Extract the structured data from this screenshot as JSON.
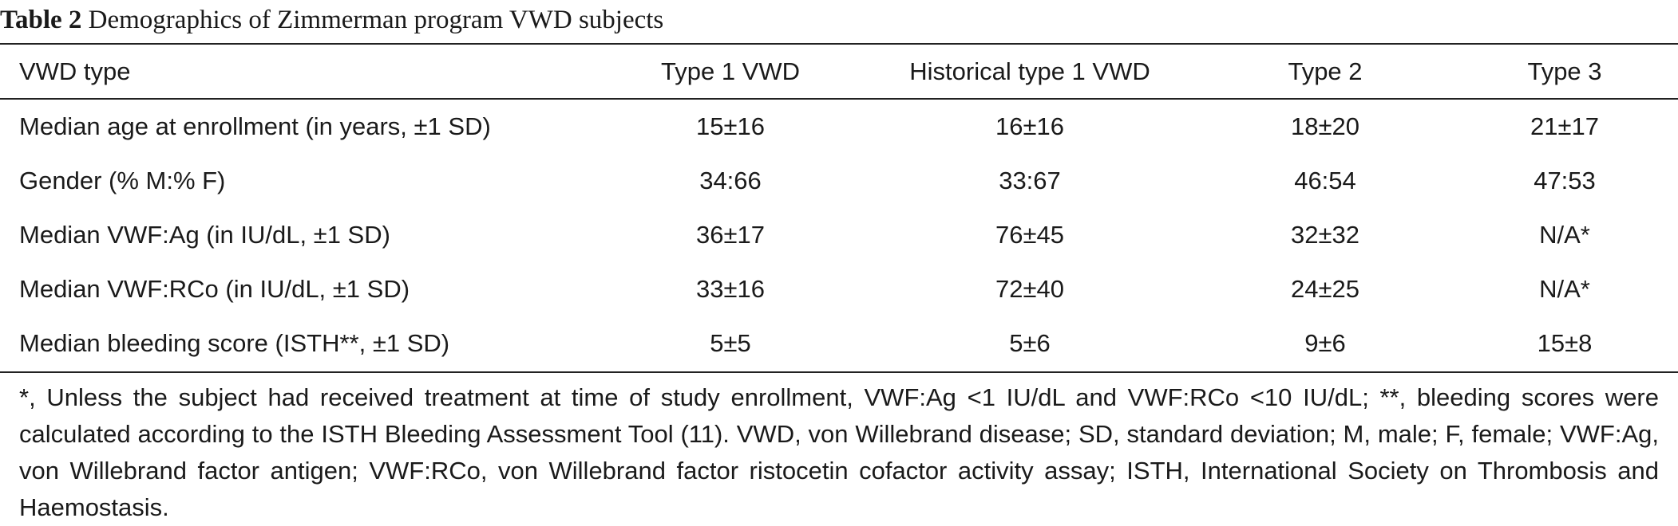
{
  "caption": {
    "label": "Table 2",
    "text": " Demographics of Zimmerman program VWD subjects"
  },
  "table": {
    "headers": [
      "VWD type",
      "Type 1 VWD",
      "Historical type 1 VWD",
      "Type 2",
      "Type 3"
    ],
    "rows": [
      [
        "Median age at enrollment (in years, ±1 SD)",
        "15±16",
        "16±16",
        "18±20",
        "21±17"
      ],
      [
        "Gender (% M:% F)",
        "34:66",
        "33:67",
        "46:54",
        "47:53"
      ],
      [
        "Median VWF:Ag (in IU/dL, ±1 SD)",
        "36±17",
        "76±45",
        "32±32",
        "N/A*"
      ],
      [
        "Median VWF:RCo (in IU/dL, ±1 SD)",
        "33±16",
        "72±40",
        "24±25",
        "N/A*"
      ],
      [
        "Median bleeding score (ISTH**, ±1 SD)",
        "5±5",
        "5±6",
        "9±6",
        "15±8"
      ]
    ]
  },
  "footnote": "*, Unless the subject had received treatment at time of study enrollment, VWF:Ag <1 IU/dL and VWF:RCo <10 IU/dL; **, bleeding scores were calculated according to the ISTH Bleeding Assessment Tool (11). VWD, von Willebrand disease; SD, standard deviation; M, male; F, female; VWF:Ag, von Willebrand factor antigen; VWF:RCo, von Willebrand factor ristocetin cofactor activity assay; ISTH, International Society on Thrombosis and Haemostasis."
}
